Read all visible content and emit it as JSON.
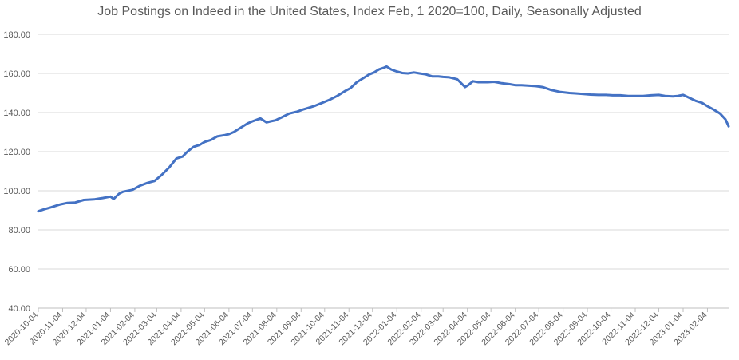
{
  "chart_data": {
    "type": "line",
    "title": "Job Postings on Indeed in the United States, Index Feb, 1 2020=100, Daily, Seasonally Adjusted",
    "xlabel": "",
    "ylabel": "",
    "ylim": [
      40,
      180
    ],
    "yticks": [
      "40.00",
      "60.00",
      "80.00",
      "100.00",
      "120.00",
      "140.00",
      "160.00",
      "180.00"
    ],
    "xticks": [
      "2020-10-04",
      "2020-11-04",
      "2020-12-04",
      "2021-01-04",
      "2021-02-04",
      "2021-03-04",
      "2021-04-04",
      "2021-05-04",
      "2021-06-04",
      "2021-07-04",
      "2021-08-04",
      "2021-09-04",
      "2021-10-04",
      "2021-11-04",
      "2021-12-04",
      "2022-01-04",
      "2022-02-04",
      "2022-03-04",
      "2022-04-04",
      "2022-05-04",
      "2022-06-04",
      "2022-07-04",
      "2022-08-04",
      "2022-09-04",
      "2022-10-04",
      "2022-11-04",
      "2022-12-04",
      "2023-01-04",
      "2023-02-04"
    ],
    "xrange": [
      "2020-10-04",
      "2023-03-03"
    ],
    "grid": true,
    "line_color": "#4472C4",
    "series": [
      {
        "x": [
          "2020-10-04",
          "2020-10-11",
          "2020-10-20",
          "2020-11-01",
          "2020-11-10",
          "2020-11-20",
          "2020-12-01",
          "2020-12-14",
          "2020-12-25",
          "2021-01-04",
          "2021-01-08",
          "2021-01-11",
          "2021-01-15",
          "2021-01-20",
          "2021-02-01",
          "2021-02-10",
          "2021-02-20",
          "2021-03-01",
          "2021-03-10",
          "2021-03-20",
          "2021-03-29",
          "2021-04-06",
          "2021-04-12",
          "2021-04-20",
          "2021-04-28",
          "2021-05-04",
          "2021-05-12",
          "2021-05-20",
          "2021-05-30",
          "2021-06-04",
          "2021-06-10",
          "2021-06-20",
          "2021-06-28",
          "2021-07-04",
          "2021-07-14",
          "2021-07-22",
          "2021-07-27",
          "2021-08-02",
          "2021-08-10",
          "2021-08-20",
          "2021-08-30",
          "2021-09-06",
          "2021-09-14",
          "2021-09-22",
          "2021-10-01",
          "2021-10-10",
          "2021-10-20",
          "2021-10-30",
          "2021-11-06",
          "2021-11-14",
          "2021-11-22",
          "2021-11-30",
          "2021-12-06",
          "2021-12-12",
          "2021-12-18",
          "2021-12-22",
          "2021-12-28",
          "2022-01-04",
          "2022-01-11",
          "2022-01-18",
          "2022-01-26",
          "2022-02-02",
          "2022-02-10",
          "2022-02-18",
          "2022-02-26",
          "2022-03-04",
          "2022-03-12",
          "2022-03-22",
          "2022-04-01",
          "2022-04-05",
          "2022-04-11",
          "2022-04-18",
          "2022-04-23",
          "2022-04-30",
          "2022-05-08",
          "2022-05-18",
          "2022-05-28",
          "2022-06-04",
          "2022-06-12",
          "2022-06-20",
          "2022-06-30",
          "2022-07-09",
          "2022-07-20",
          "2022-08-01",
          "2022-08-12",
          "2022-08-20",
          "2022-08-30",
          "2022-09-08",
          "2022-09-18",
          "2022-09-28",
          "2022-10-06",
          "2022-10-16",
          "2022-10-26",
          "2022-11-04",
          "2022-11-14",
          "2022-11-24",
          "2022-12-04",
          "2022-12-12",
          "2022-12-22",
          "2022-12-28",
          "2023-01-04",
          "2023-01-12",
          "2023-01-20",
          "2023-01-28",
          "2023-02-05",
          "2023-02-12",
          "2023-02-20",
          "2023-02-27",
          "2023-03-03"
        ],
        "y": [
          89.5,
          90.5,
          91.5,
          93.0,
          93.8,
          94.0,
          95.3,
          95.6,
          96.3,
          97.0,
          95.8,
          97.0,
          98.5,
          99.5,
          100.5,
          102.5,
          104.0,
          105.0,
          108.0,
          112.0,
          116.5,
          117.5,
          120.0,
          122.5,
          123.5,
          125.0,
          126.0,
          127.8,
          128.5,
          129.0,
          130.0,
          132.5,
          134.5,
          135.5,
          137.0,
          135.0,
          135.5,
          136.0,
          137.5,
          139.5,
          140.5,
          141.5,
          142.5,
          143.5,
          145.0,
          146.5,
          148.5,
          151.0,
          152.5,
          155.5,
          157.5,
          159.5,
          160.5,
          162.0,
          162.8,
          163.5,
          162.0,
          161.0,
          160.2,
          160.0,
          160.5,
          160.0,
          159.5,
          158.5,
          158.5,
          158.2,
          158.0,
          157.0,
          153.0,
          154.0,
          156.0,
          155.5,
          155.5,
          155.5,
          155.7,
          155.0,
          154.5,
          154.0,
          154.0,
          153.8,
          153.5,
          153.0,
          151.5,
          150.5,
          150.0,
          149.8,
          149.5,
          149.2,
          149.0,
          149.0,
          148.8,
          148.8,
          148.5,
          148.5,
          148.5,
          148.8,
          149.0,
          148.5,
          148.3,
          148.5,
          149.0,
          147.5,
          146.0,
          145.0,
          143.0,
          141.5,
          139.5,
          136.5,
          133.0
        ]
      }
    ]
  }
}
